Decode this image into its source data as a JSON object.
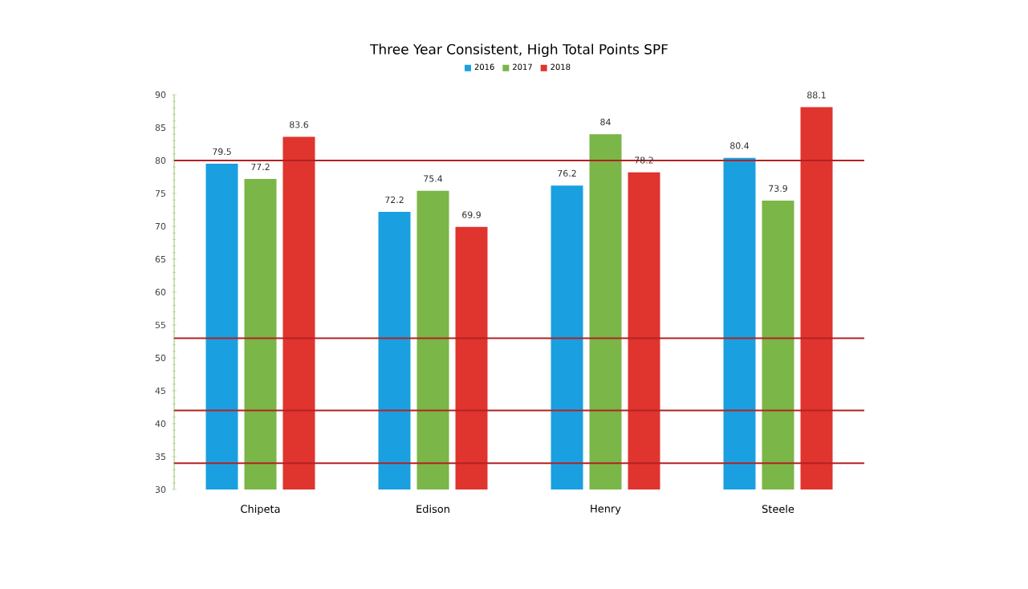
{
  "chart_data": {
    "type": "bar",
    "title": "Three Year Consistent, High   Total Points   SPF",
    "categories": [
      "Chipeta",
      "Edison",
      "Henry",
      "Steele"
    ],
    "series": [
      {
        "name": "2016",
        "color": "#1aa0e0",
        "values": [
          79.5,
          72.2,
          76.2,
          80.4
        ]
      },
      {
        "name": "2017",
        "color": "#7ab648",
        "values": [
          77.2,
          75.4,
          84,
          73.9
        ]
      },
      {
        "name": "2018",
        "color": "#e0342e",
        "values": [
          83.6,
          69.9,
          78.2,
          88.1
        ]
      }
    ],
    "ylim": [
      30,
      90
    ],
    "yticks": [
      30,
      35,
      40,
      45,
      50,
      55,
      60,
      65,
      70,
      75,
      80,
      85,
      90
    ],
    "ref_lines": [
      {
        "axis": "y",
        "value": 80,
        "color": "#b22222"
      },
      {
        "axis": "y",
        "value": 53,
        "color": "#b22222"
      },
      {
        "axis": "y",
        "value": 42,
        "color": "#b22222"
      },
      {
        "axis": "y",
        "value": 34,
        "color": "#b22222"
      }
    ],
    "data_labels": true,
    "legend": "top",
    "grid": false
  }
}
